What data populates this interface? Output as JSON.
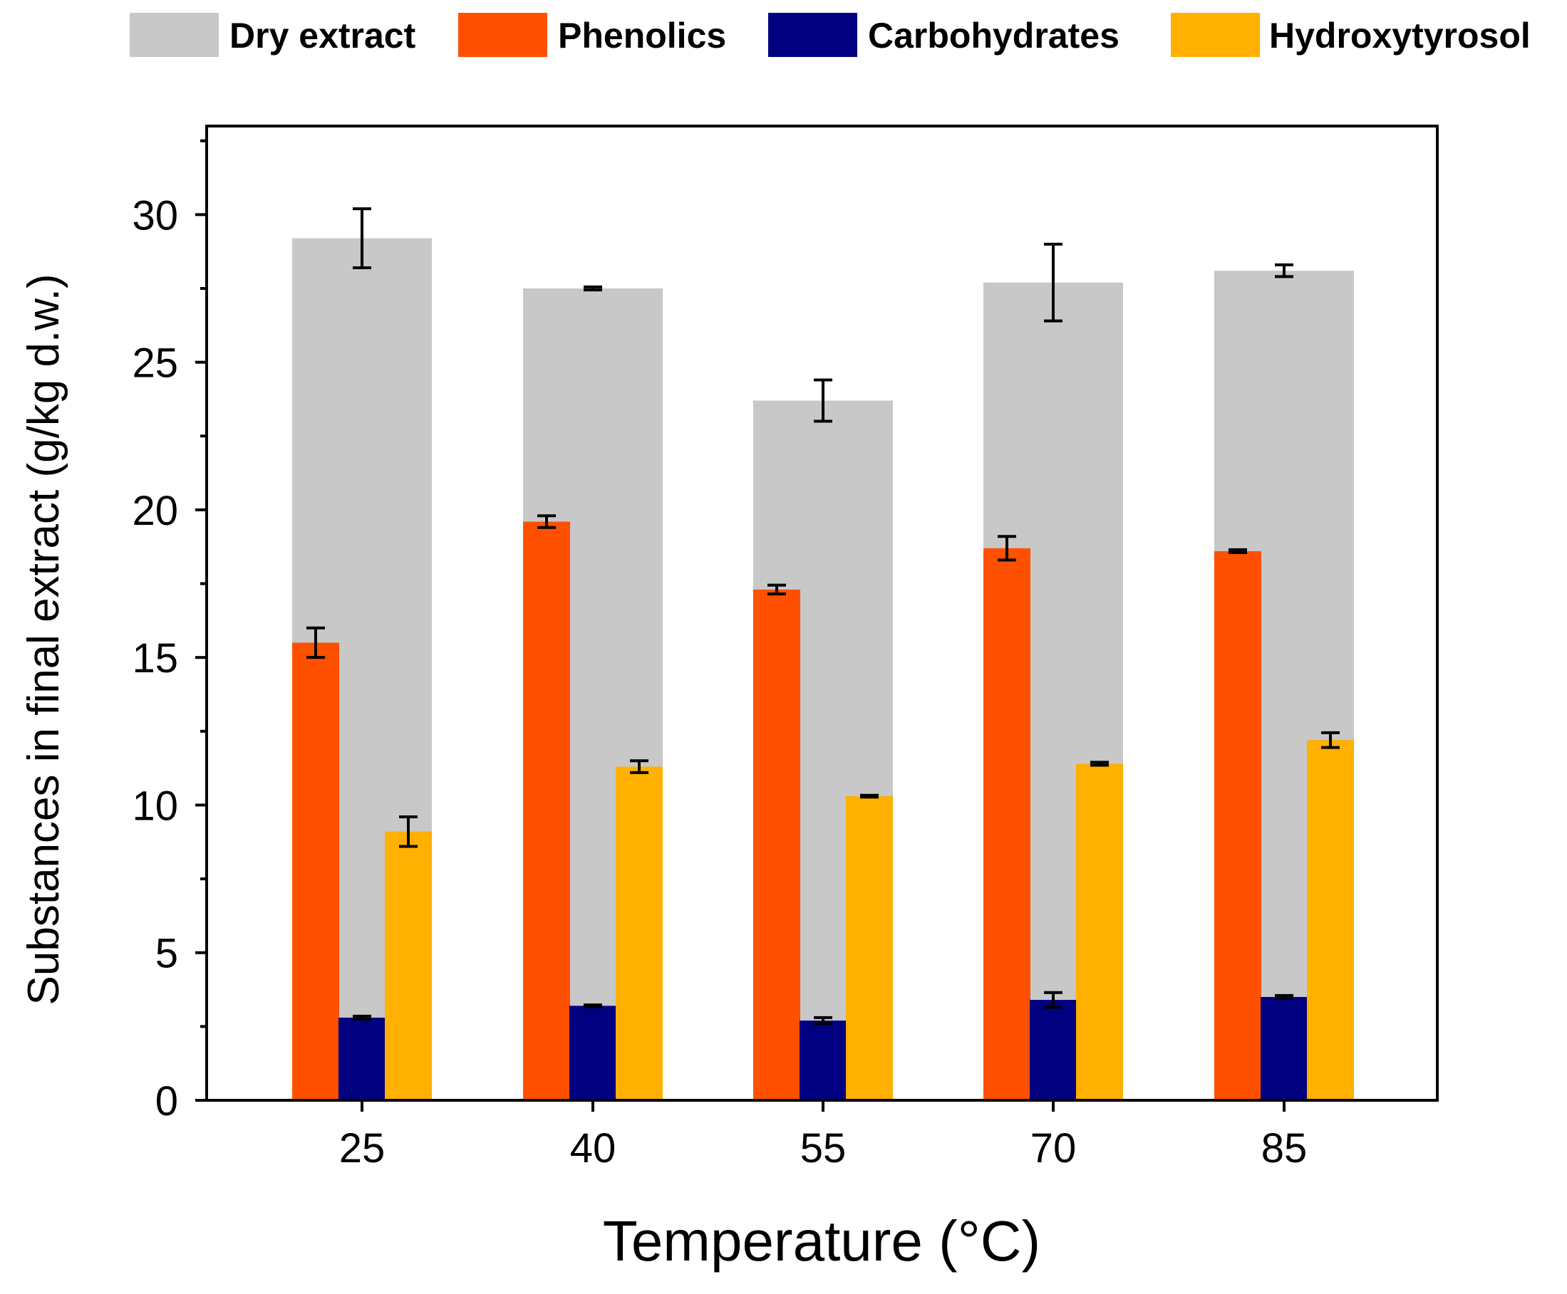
{
  "chart_data": {
    "type": "bar",
    "xlabel": "Temperature (°C)",
    "ylabel": "Substances in final extract (g/kg d.w.)",
    "categories": [
      "25",
      "40",
      "55",
      "70",
      "85"
    ],
    "ylim": [
      0,
      33
    ],
    "yticks": [
      "0",
      "5",
      "10",
      "15",
      "20",
      "25",
      "30"
    ],
    "legend_position": "top",
    "background_series": {
      "name": "Dry extract",
      "color": "#c8c8c8",
      "values": [
        29.2,
        27.5,
        23.7,
        27.7,
        28.1
      ],
      "errors": [
        1.0,
        0.05,
        0.7,
        1.3,
        0.2
      ]
    },
    "series": [
      {
        "name": "Phenolics",
        "color": "#ff5000",
        "values": [
          15.5,
          19.6,
          17.3,
          18.7,
          18.6
        ],
        "errors": [
          0.5,
          0.2,
          0.15,
          0.4,
          0.05
        ]
      },
      {
        "name": "Carbohydrates",
        "color": "#000080",
        "values": [
          2.8,
          3.2,
          2.7,
          3.4,
          3.5
        ],
        "errors": [
          0.05,
          0.03,
          0.1,
          0.25,
          0.05
        ]
      },
      {
        "name": "Hydroxytyrosol",
        "color": "#ffb000",
        "values": [
          9.1,
          11.3,
          10.3,
          11.4,
          12.2
        ],
        "errors": [
          0.5,
          0.2,
          0.03,
          0.05,
          0.25
        ]
      }
    ]
  }
}
